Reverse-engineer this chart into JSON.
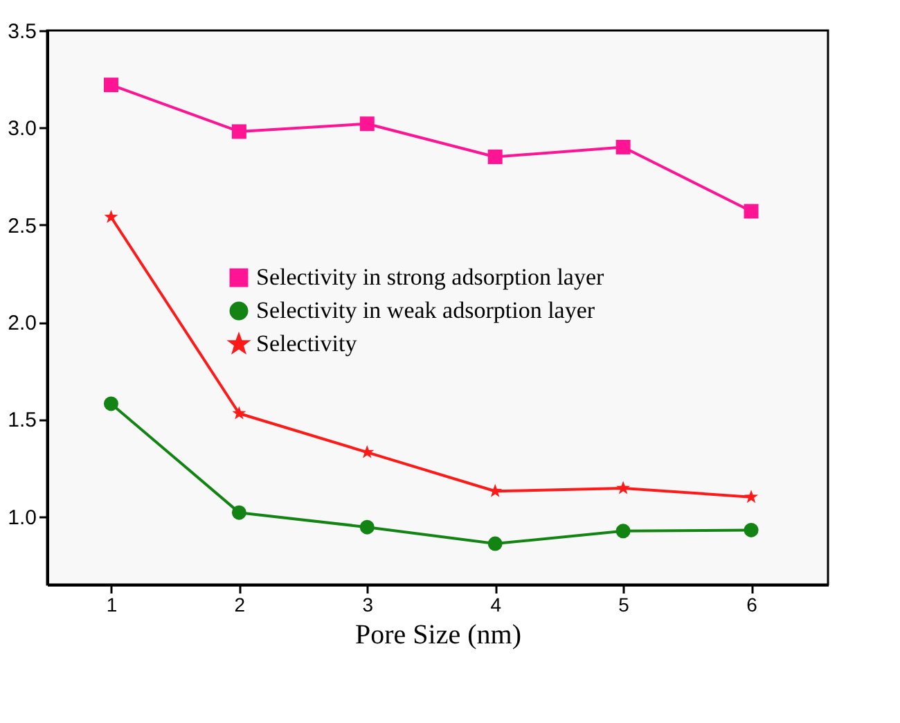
{
  "chart_data": {
    "type": "line",
    "xlabel": "Pore Size (nm)",
    "x": [
      1,
      2,
      3,
      4,
      5,
      6
    ],
    "series": [
      {
        "name": "Selectivity in strong adsorption layer",
        "color": "#ff1493",
        "marker": "square",
        "values": [
          3.22,
          2.98,
          3.02,
          2.85,
          2.9,
          2.57
        ]
      },
      {
        "name": "Selectivity in weak adsorption layer",
        "color": "#138413",
        "marker": "circle",
        "values": [
          1.58,
          1.02,
          0.945,
          0.86,
          0.925,
          0.93
        ]
      },
      {
        "name": "Selectivity",
        "color": "#ff1a1a",
        "marker": "star",
        "values": [
          2.54,
          1.53,
          1.33,
          1.13,
          1.145,
          1.1
        ]
      }
    ],
    "xlim": [
      0.5,
      6.6
    ],
    "xticks": [
      1,
      2,
      3,
      4,
      5,
      6
    ],
    "ylim": [
      0.65,
      3.5
    ],
    "yticks": [
      {
        "value": 1,
        "label": "1.0"
      },
      1.5,
      {
        "value": 2,
        "label": "2.0"
      },
      2.5,
      {
        "value": 3,
        "label": "3.0"
      },
      3.5
    ],
    "grid": false,
    "legend": "center",
    "line_style": "solid"
  }
}
